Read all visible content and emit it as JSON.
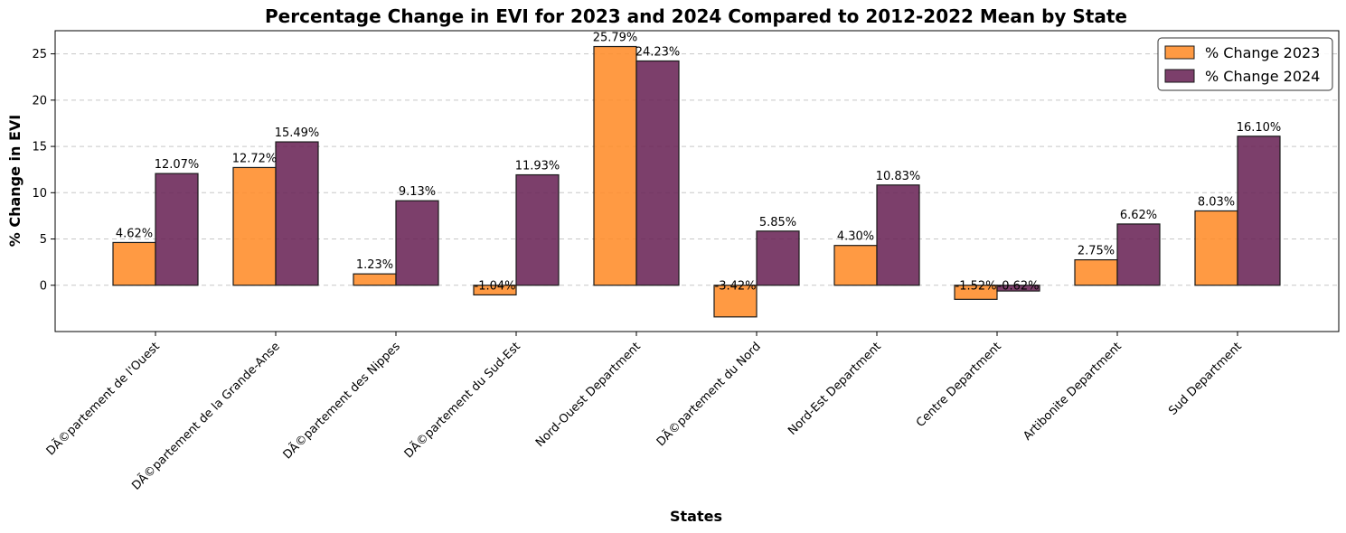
{
  "chart_data": {
    "type": "bar",
    "title": "Percentage Change in EVI for 2023 and 2024 Compared to 2012-2022 Mean by State",
    "xlabel": "States",
    "ylabel": "% Change in EVI",
    "ylim": [
      -5,
      27.5
    ],
    "yticks": [
      0,
      5,
      10,
      15,
      20,
      25
    ],
    "grid": "y-dashed",
    "legend_position": "top-right",
    "categories": [
      "DÃ©partement de l'Ouest",
      "DÃ©partement de la Grande-Anse",
      "DÃ©partement des Nippes",
      "DÃ©partement du Sud-Est",
      "Nord-Ouest Department",
      "DÃ©partement du Nord",
      "Nord-Est Department",
      "Centre Department",
      "Artibonite Department",
      "Sud Department"
    ],
    "series": [
      {
        "name": "% Change 2023",
        "color": "#ff8c29",
        "values": [
          4.62,
          12.72,
          1.23,
          -1.04,
          25.79,
          -3.42,
          4.3,
          -1.52,
          2.75,
          8.03
        ],
        "labels": [
          "4.62%",
          "12.72%",
          "1.23%",
          "-1.04%",
          "25.79%",
          "-3.42%",
          "4.30%",
          "-1.52%",
          "2.75%",
          "8.03%"
        ]
      },
      {
        "name": "% Change 2024",
        "color": "#6a2456",
        "values": [
          12.07,
          15.49,
          9.13,
          11.93,
          24.23,
          5.85,
          10.83,
          -0.62,
          6.62,
          16.1
        ],
        "labels": [
          "12.07%",
          "15.49%",
          "9.13%",
          "11.93%",
          "24.23%",
          "5.85%",
          "10.83%",
          "-0.62%",
          "6.62%",
          "16.10%"
        ]
      }
    ]
  }
}
